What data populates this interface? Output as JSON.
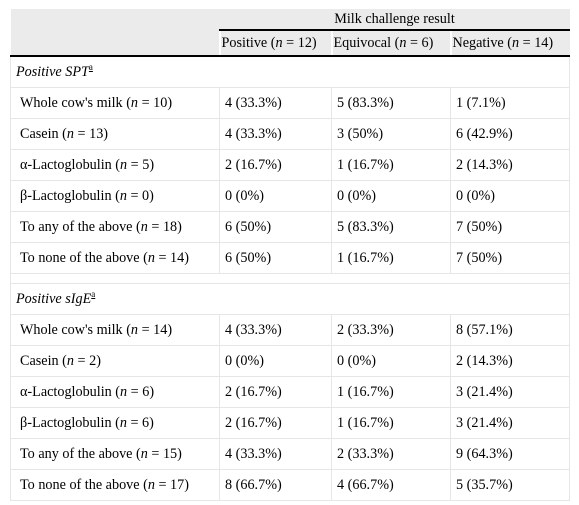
{
  "header": {
    "group_label": "Milk challenge result",
    "columns": [
      {
        "label": "Positive",
        "n": "12"
      },
      {
        "label": "Equivocal",
        "n": "6"
      },
      {
        "label": "Negative",
        "n": "14"
      }
    ]
  },
  "sections": [
    {
      "title": "Positive SPT",
      "note": "a",
      "rows": [
        {
          "label": "Whole cow's milk",
          "n": "10",
          "values": [
            "4 (33.3%)",
            "5 (83.3%)",
            "1 (7.1%)"
          ]
        },
        {
          "label": "Casein",
          "n": "13",
          "values": [
            "4 (33.3%)",
            "3 (50%)",
            "6 (42.9%)"
          ]
        },
        {
          "label": "α-Lactoglobulin",
          "n": "5",
          "values": [
            "2 (16.7%)",
            "1 (16.7%)",
            "2 (14.3%)"
          ]
        },
        {
          "label": "β-Lactoglobulin",
          "n": "0",
          "values": [
            "0 (0%)",
            "0 (0%)",
            "0 (0%)"
          ]
        },
        {
          "label": "To any of the above",
          "n": "18",
          "values": [
            "6 (50%)",
            "5 (83.3%)",
            "7 (50%)"
          ]
        },
        {
          "label": "To none of the above",
          "n": "14",
          "values": [
            "6 (50%)",
            "1 (16.7%)",
            "7 (50%)"
          ]
        }
      ]
    },
    {
      "title": "Positive sIgE",
      "note": "a",
      "rows": [
        {
          "label": "Whole cow's milk",
          "n": "14",
          "values": [
            "4 (33.3%)",
            "2 (33.3%)",
            "8 (57.1%)"
          ]
        },
        {
          "label": "Casein",
          "n": "2",
          "values": [
            "0 (0%)",
            "0 (0%)",
            "2 (14.3%)"
          ]
        },
        {
          "label": "α-Lactoglobulin",
          "n": "6",
          "values": [
            "2 (16.7%)",
            "1 (16.7%)",
            "3 (21.4%)"
          ]
        },
        {
          "label": "β-Lactoglobulin",
          "n": "6",
          "values": [
            "2 (16.7%)",
            "1 (16.7%)",
            "3 (21.4%)"
          ]
        },
        {
          "label": "To any of the above",
          "n": "15",
          "values": [
            "4 (33.3%)",
            "2 (33.3%)",
            "9 (64.3%)"
          ]
        },
        {
          "label": "To none of the above",
          "n": "17",
          "values": [
            "8 (66.7%)",
            "4 (66.7%)",
            "5 (35.7%)"
          ]
        }
      ]
    }
  ]
}
